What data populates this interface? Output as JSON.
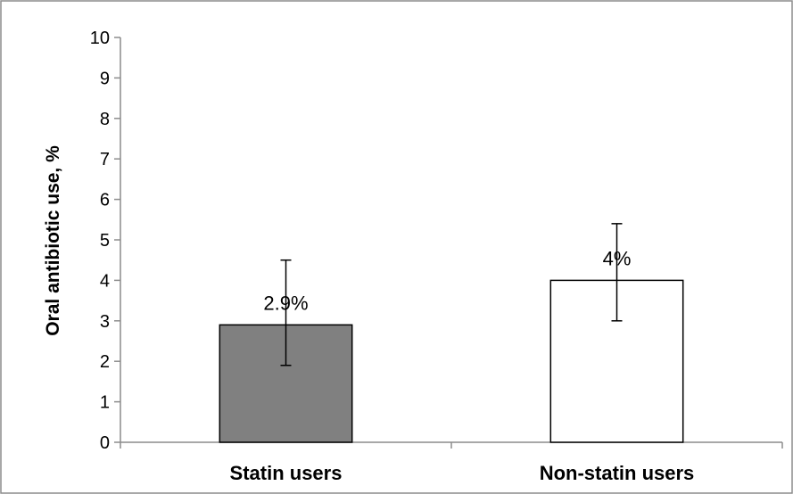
{
  "chart_data": {
    "type": "bar",
    "title": "",
    "xlabel": "",
    "ylabel": "Oral antibiotic use, %",
    "categories": [
      "Statin users",
      "Non-statin users"
    ],
    "values": [
      2.9,
      4.0
    ],
    "data_labels": [
      "2.9%",
      "4%"
    ],
    "error_bars": [
      {
        "low": 1.9,
        "high": 4.5
      },
      {
        "low": 3.0,
        "high": 5.4
      }
    ],
    "bar_fill_colors": [
      "#808080",
      "#ffffff"
    ],
    "bar_stroke_color": "#000000",
    "ylim": [
      0,
      10
    ],
    "y_ticks": [
      "0",
      "1",
      "2",
      "3",
      "4",
      "5",
      "6",
      "7",
      "8",
      "9",
      "10"
    ],
    "grid": false,
    "legend": "none"
  }
}
